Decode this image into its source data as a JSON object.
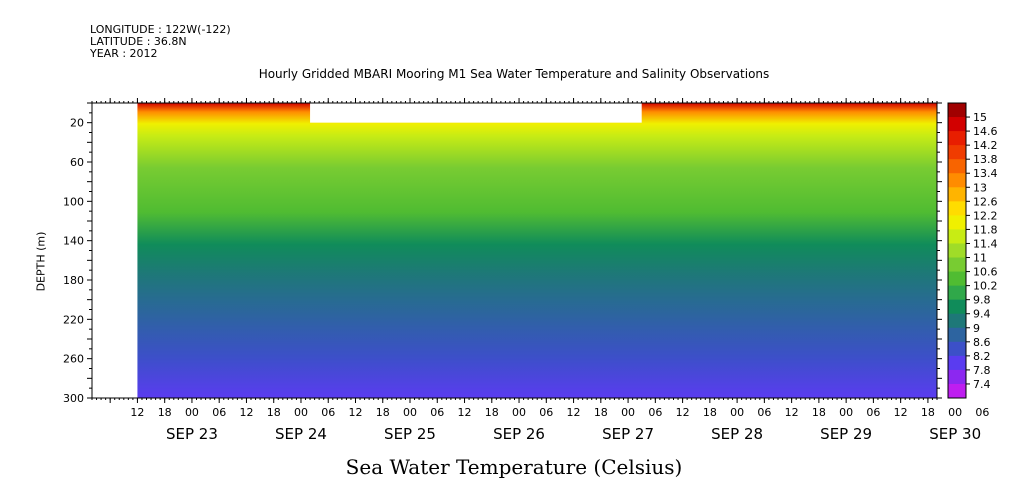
{
  "header": {
    "longitude": "LONGITUDE : 122W(-122)",
    "latitude": "LATITUDE : 36.8N",
    "year": "YEAR : 2012"
  },
  "chart_data": {
    "type": "heatmap",
    "title": "Hourly Gridded MBARI Mooring M1 Sea Water Temperature and Salinity Observations",
    "xlabel": "Sea Water Temperature (Celsius)",
    "ylabel": "DEPTH (m)",
    "ylim": [
      300,
      0
    ],
    "yticks": [
      20,
      60,
      100,
      140,
      180,
      220,
      260,
      300
    ],
    "xlim_hours_from_sep23_00": [
      -22,
      164
    ],
    "hour_ticks": [
      "12",
      "18",
      "00",
      "06",
      "12",
      "18",
      "00",
      "06",
      "12",
      "18",
      "00",
      "06",
      "12",
      "18",
      "00",
      "06",
      "12",
      "18",
      "00",
      "06",
      "12",
      "18",
      "00",
      "06",
      "12",
      "18",
      "00",
      "06",
      "12",
      "18",
      "00",
      "06"
    ],
    "date_labels": [
      "SEP 23",
      "SEP 24",
      "SEP 25",
      "SEP 26",
      "SEP 27",
      "SEP 28",
      "SEP 29",
      "SEP 30"
    ],
    "colorbar_levels": [
      "15",
      "14.6",
      "14.2",
      "13.8",
      "13.4",
      "13",
      "12.6",
      "12.2",
      "11.8",
      "11.4",
      "11",
      "10.6",
      "10.2",
      "9.8",
      "9.4",
      "9",
      "8.6",
      "8.2",
      "7.8",
      "7.4"
    ],
    "colorbar_colors": [
      "#a00000",
      "#d20000",
      "#e81e00",
      "#f03c00",
      "#f86400",
      "#ff8c00",
      "#ffb400",
      "#ffdc00",
      "#f0f000",
      "#c8ec14",
      "#a0dc28",
      "#78cc32",
      "#50bc32",
      "#30a84a",
      "#108c5a",
      "#1e7878",
      "#2d64a0",
      "#3c50c8",
      "#5a3cf0",
      "#8c28f0",
      "#be1ef0"
    ],
    "data_gaps": [
      {
        "x_start": -22,
        "x_end": -12,
        "y_start": 0,
        "y_end": 300
      },
      {
        "x_start": 26,
        "x_end": 99,
        "y_start": 0,
        "y_end": 20
      }
    ],
    "depth_profile_samples": [
      {
        "depth": 5,
        "value": 14.6
      },
      {
        "depth": 20,
        "value": 12.2
      },
      {
        "depth": 60,
        "value": 10.8
      },
      {
        "depth": 100,
        "value": 10.2
      },
      {
        "depth": 140,
        "value": 9.6
      },
      {
        "depth": 180,
        "value": 9.0
      },
      {
        "depth": 220,
        "value": 8.6
      },
      {
        "depth": 260,
        "value": 8.2
      },
      {
        "depth": 300,
        "value": 7.8
      }
    ]
  }
}
